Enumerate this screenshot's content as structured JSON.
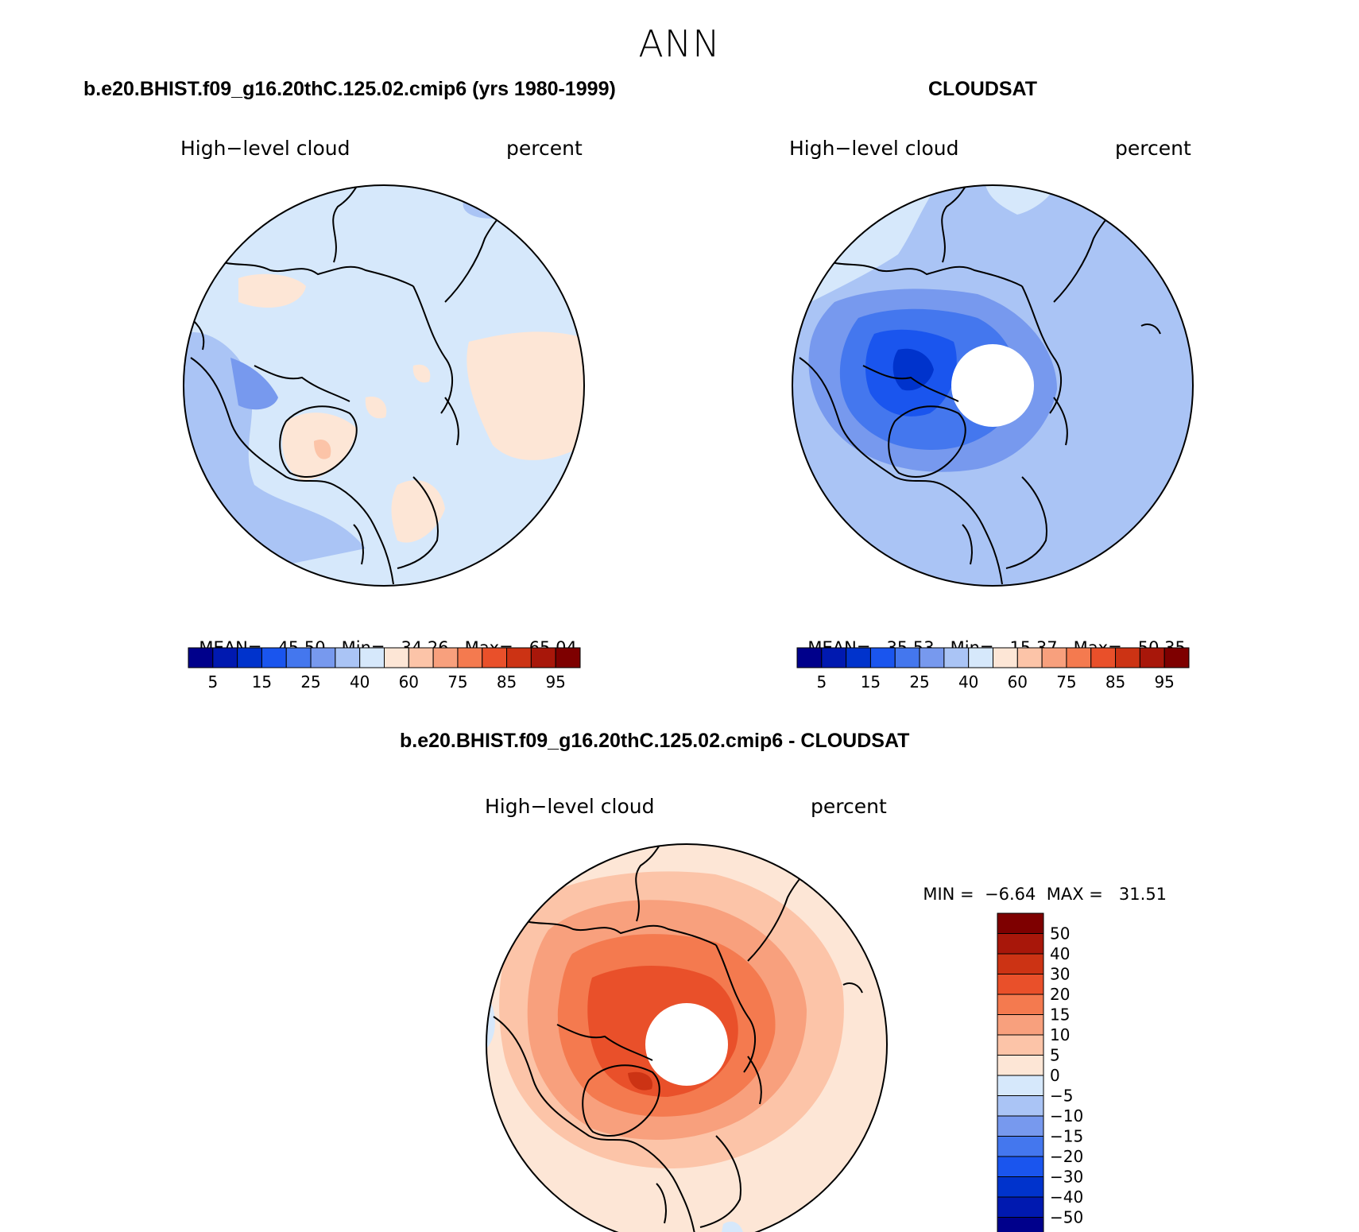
{
  "page": {
    "title": "ANN"
  },
  "panels": [
    {
      "id": "model",
      "title": "b.e20.BHIST.f09_g16.20thC.125.02.cmip6 (yrs 1980-1999)",
      "left_label": "High−level cloud",
      "right_label": "percent",
      "stats": {
        "mean_label": "MEAN=",
        "mean": "45.50",
        "min_label": "Min=",
        "min": "34.26",
        "max_label": "Max=",
        "max": "65.04"
      },
      "has_polar_hole": false
    },
    {
      "id": "obs",
      "title": "CLOUDSAT",
      "left_label": "High−level cloud",
      "right_label": "percent",
      "stats": {
        "mean_label": "MEAN=",
        "mean": "35.53",
        "min_label": "Min=",
        "min": "15.37",
        "max_label": "Max=",
        "max": "50.35"
      },
      "has_polar_hole": true
    },
    {
      "id": "diff",
      "title": "b.e20.BHIST.f09_g16.20thC.125.02.cmip6 - CLOUDSAT",
      "left_label": "High−level cloud",
      "right_label": "percent",
      "stats": {
        "min_label": "MIN =",
        "min": "−6.64",
        "max_label": "MAX =",
        "max": "31.51"
      },
      "has_polar_hole": true
    }
  ],
  "abs_colorbar": {
    "colors": [
      "#00008b",
      "#0019b0",
      "#0033cc",
      "#1a55ee",
      "#4477ee",
      "#7799ee",
      "#aac4f5",
      "#d6e8fb",
      "#fde6d6",
      "#fcc4a8",
      "#f8a07d",
      "#f47a4f",
      "#e9502a",
      "#cc3314",
      "#a8170a",
      "#7e0000"
    ],
    "tick_labels": [
      "5",
      "15",
      "25",
      "40",
      "60",
      "75",
      "85",
      "95"
    ]
  },
  "diff_colorbar": {
    "colors": [
      "#00008b",
      "#0019b0",
      "#0033cc",
      "#1a55ee",
      "#4477ee",
      "#7799ee",
      "#aac4f5",
      "#d6e8fb",
      "#fde6d6",
      "#fcc4a8",
      "#f8a07d",
      "#f47a4f",
      "#e9502a",
      "#cc3314",
      "#a8170a",
      "#7e0000"
    ],
    "tick_labels": [
      "50",
      "40",
      "30",
      "20",
      "15",
      "10",
      "5",
      "0",
      "−5",
      "−10",
      "−15",
      "−20",
      "−30",
      "−40",
      "−50"
    ]
  }
}
